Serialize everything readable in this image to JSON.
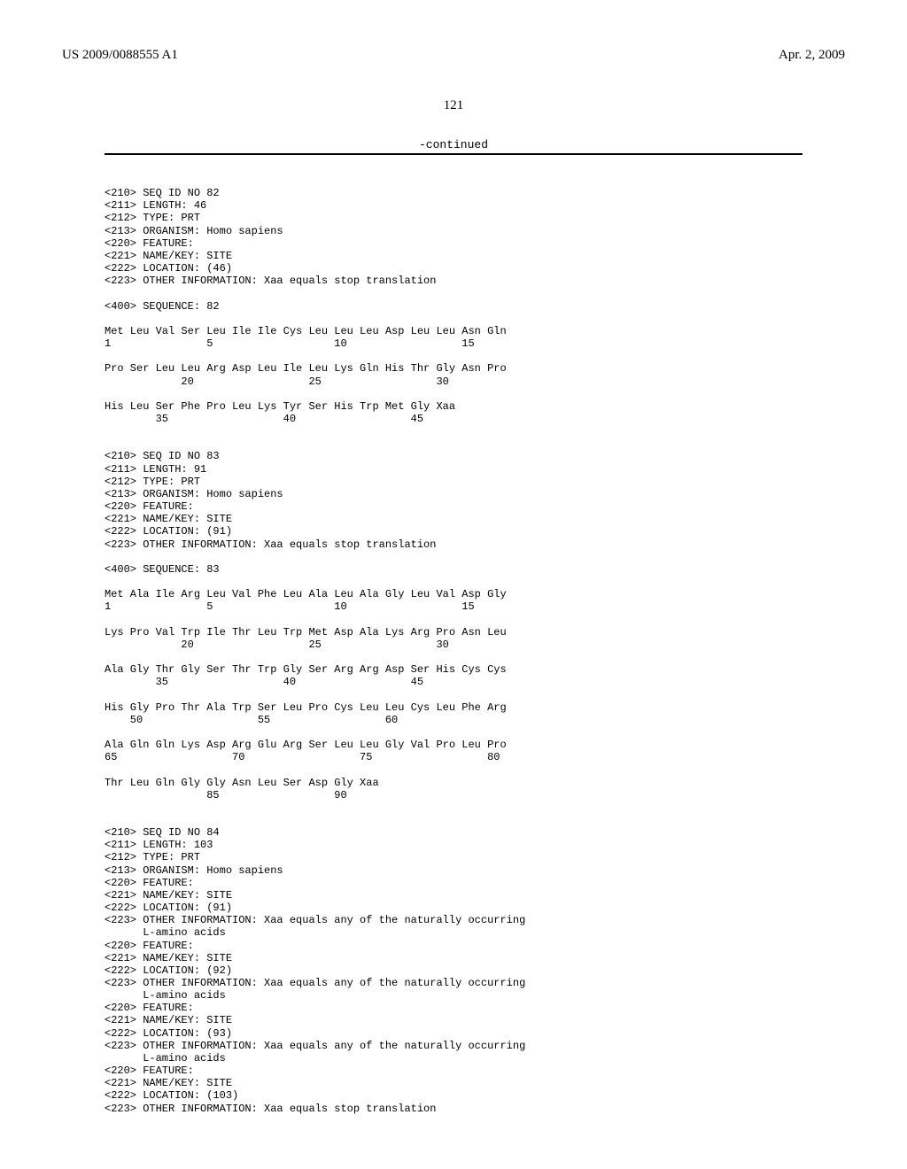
{
  "header": {
    "left": "US 2009/0088555 A1",
    "right": "Apr. 2, 2009"
  },
  "page_number": "121",
  "continued_label": "-continued",
  "seq82": {
    "h1": "<210> SEQ ID NO 82",
    "h2": "<211> LENGTH: 46",
    "h3": "<212> TYPE: PRT",
    "h4": "<213> ORGANISM: Homo sapiens",
    "h5": "<220> FEATURE:",
    "h6": "<221> NAME/KEY: SITE",
    "h7": "<222> LOCATION: (46)",
    "h8": "<223> OTHER INFORMATION: Xaa equals stop translation",
    "sq": "<400> SEQUENCE: 82",
    "l1a": "Met Leu Val Ser Leu Ile Ile Cys Leu Leu Leu Asp Leu Leu Asn Gln",
    "l1b": "1               5                   10                  15",
    "l2a": "Pro Ser Leu Leu Arg Asp Leu Ile Leu Lys Gln His Thr Gly Asn Pro",
    "l2b": "            20                  25                  30",
    "l3a": "His Leu Ser Phe Pro Leu Lys Tyr Ser His Trp Met Gly Xaa",
    "l3b": "        35                  40                  45"
  },
  "seq83": {
    "h1": "<210> SEQ ID NO 83",
    "h2": "<211> LENGTH: 91",
    "h3": "<212> TYPE: PRT",
    "h4": "<213> ORGANISM: Homo sapiens",
    "h5": "<220> FEATURE:",
    "h6": "<221> NAME/KEY: SITE",
    "h7": "<222> LOCATION: (91)",
    "h8": "<223> OTHER INFORMATION: Xaa equals stop translation",
    "sq": "<400> SEQUENCE: 83",
    "l1a": "Met Ala Ile Arg Leu Val Phe Leu Ala Leu Ala Gly Leu Val Asp Gly",
    "l1b": "1               5                   10                  15",
    "l2a": "Lys Pro Val Trp Ile Thr Leu Trp Met Asp Ala Lys Arg Pro Asn Leu",
    "l2b": "            20                  25                  30",
    "l3a": "Ala Gly Thr Gly Ser Thr Trp Gly Ser Arg Arg Asp Ser His Cys Cys",
    "l3b": "        35                  40                  45",
    "l4a": "His Gly Pro Thr Ala Trp Ser Leu Pro Cys Leu Leu Cys Leu Phe Arg",
    "l4b": "    50                  55                  60",
    "l5a": "Ala Gln Gln Lys Asp Arg Glu Arg Ser Leu Leu Gly Val Pro Leu Pro",
    "l5b": "65                  70                  75                  80",
    "l6a": "Thr Leu Gln Gly Gly Asn Leu Ser Asp Gly Xaa",
    "l6b": "                85                  90"
  },
  "seq84": {
    "h1": "<210> SEQ ID NO 84",
    "h2": "<211> LENGTH: 103",
    "h3": "<212> TYPE: PRT",
    "h4": "<213> ORGANISM: Homo sapiens",
    "h5": "<220> FEATURE:",
    "h6": "<221> NAME/KEY: SITE",
    "h7": "<222> LOCATION: (91)",
    "h8": "<223> OTHER INFORMATION: Xaa equals any of the naturally occurring",
    "h8b": "      L-amino acids",
    "h9": "<220> FEATURE:",
    "h10": "<221> NAME/KEY: SITE",
    "h11": "<222> LOCATION: (92)",
    "h12": "<223> OTHER INFORMATION: Xaa equals any of the naturally occurring",
    "h12b": "      L-amino acids",
    "h13": "<220> FEATURE:",
    "h14": "<221> NAME/KEY: SITE",
    "h15": "<222> LOCATION: (93)",
    "h16": "<223> OTHER INFORMATION: Xaa equals any of the naturally occurring",
    "h16b": "      L-amino acids",
    "h17": "<220> FEATURE:",
    "h18": "<221> NAME/KEY: SITE",
    "h19": "<222> LOCATION: (103)",
    "h20": "<223> OTHER INFORMATION: Xaa equals stop translation"
  }
}
